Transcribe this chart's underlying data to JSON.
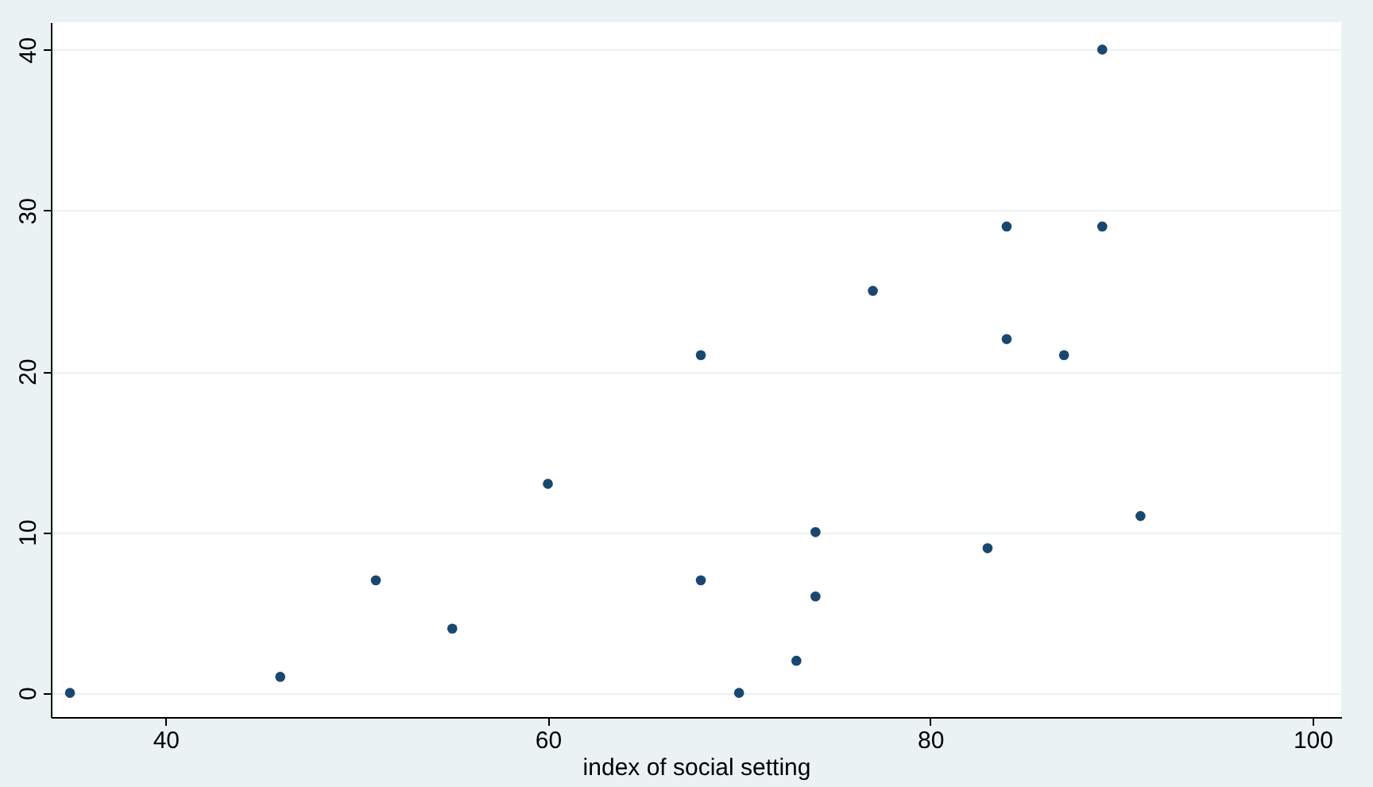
{
  "chart_data": {
    "type": "scatter",
    "xlabel": "index of social setting",
    "x": [
      46,
      74,
      89,
      77,
      84,
      89,
      68,
      70,
      60,
      55,
      35,
      51,
      87,
      83,
      68,
      84,
      74,
      73,
      84,
      91
    ],
    "series": [
      {
        "color": "#1a476f",
        "values": [
          1,
          10,
          29,
          25,
          29,
          40,
          21,
          0,
          13,
          4,
          0,
          7,
          21,
          9,
          7,
          22,
          6,
          2,
          null,
          11
        ]
      }
    ],
    "xlim": [
      34,
      101.5
    ],
    "xticks": [
      40,
      60,
      80,
      100
    ],
    "ylim": [
      -1.5,
      41.7
    ],
    "yticks": [
      0,
      10,
      20,
      30,
      40
    ],
    "grid": "y",
    "marker": "circle"
  }
}
